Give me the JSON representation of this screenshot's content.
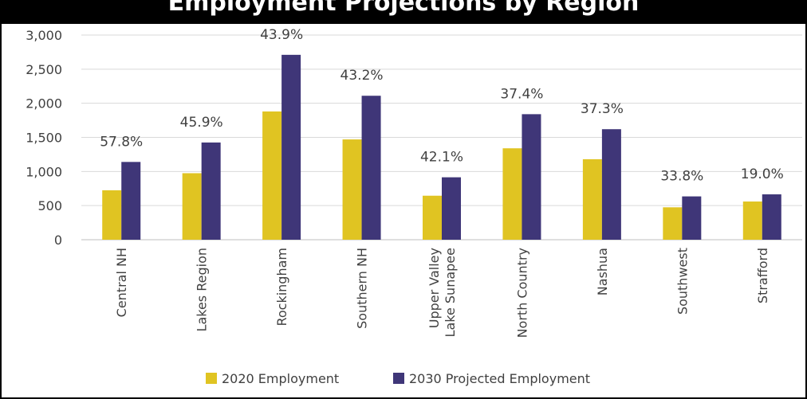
{
  "chart_data": {
    "type": "bar",
    "title": "Employment Projections by Region",
    "categories": [
      "Central NH",
      "Lakes Region",
      "Rockingham",
      "Southern NH",
      "Upper Valley Lake Sunapee",
      "North Country",
      "Nashua",
      "Southwest",
      "Strafford"
    ],
    "category_lines": [
      [
        "Central NH"
      ],
      [
        "Lakes Region"
      ],
      [
        "Rockingham"
      ],
      [
        "Southern NH"
      ],
      [
        "Upper Valley",
        "Lake Sunapee"
      ],
      [
        "North Country"
      ],
      [
        "Nashua"
      ],
      [
        "Southwest"
      ],
      [
        "Strafford"
      ]
    ],
    "series": [
      {
        "name": "2020 Employment",
        "color": "#e0c422",
        "values": [
          725,
          975,
          1880,
          1470,
          645,
          1340,
          1180,
          475,
          560
        ]
      },
      {
        "name": "2030 Projected Employment",
        "color": "#3f3678",
        "values": [
          1140,
          1425,
          2710,
          2110,
          915,
          1840,
          1620,
          635,
          665
        ]
      }
    ],
    "data_labels": [
      "57.8%",
      "45.9%",
      "43.9%",
      "43.2%",
      "42.1%",
      "37.4%",
      "37.3%",
      "33.8%",
      "19.0%"
    ],
    "yticks": [
      0,
      500,
      1000,
      1500,
      2000,
      2500,
      3000
    ],
    "ytick_labels": [
      "0",
      "500",
      "1,000",
      "1,500",
      "2,000",
      "2,500",
      "3,000"
    ],
    "ylim": [
      0,
      3000
    ],
    "grid": true,
    "legend_position": "bottom"
  }
}
